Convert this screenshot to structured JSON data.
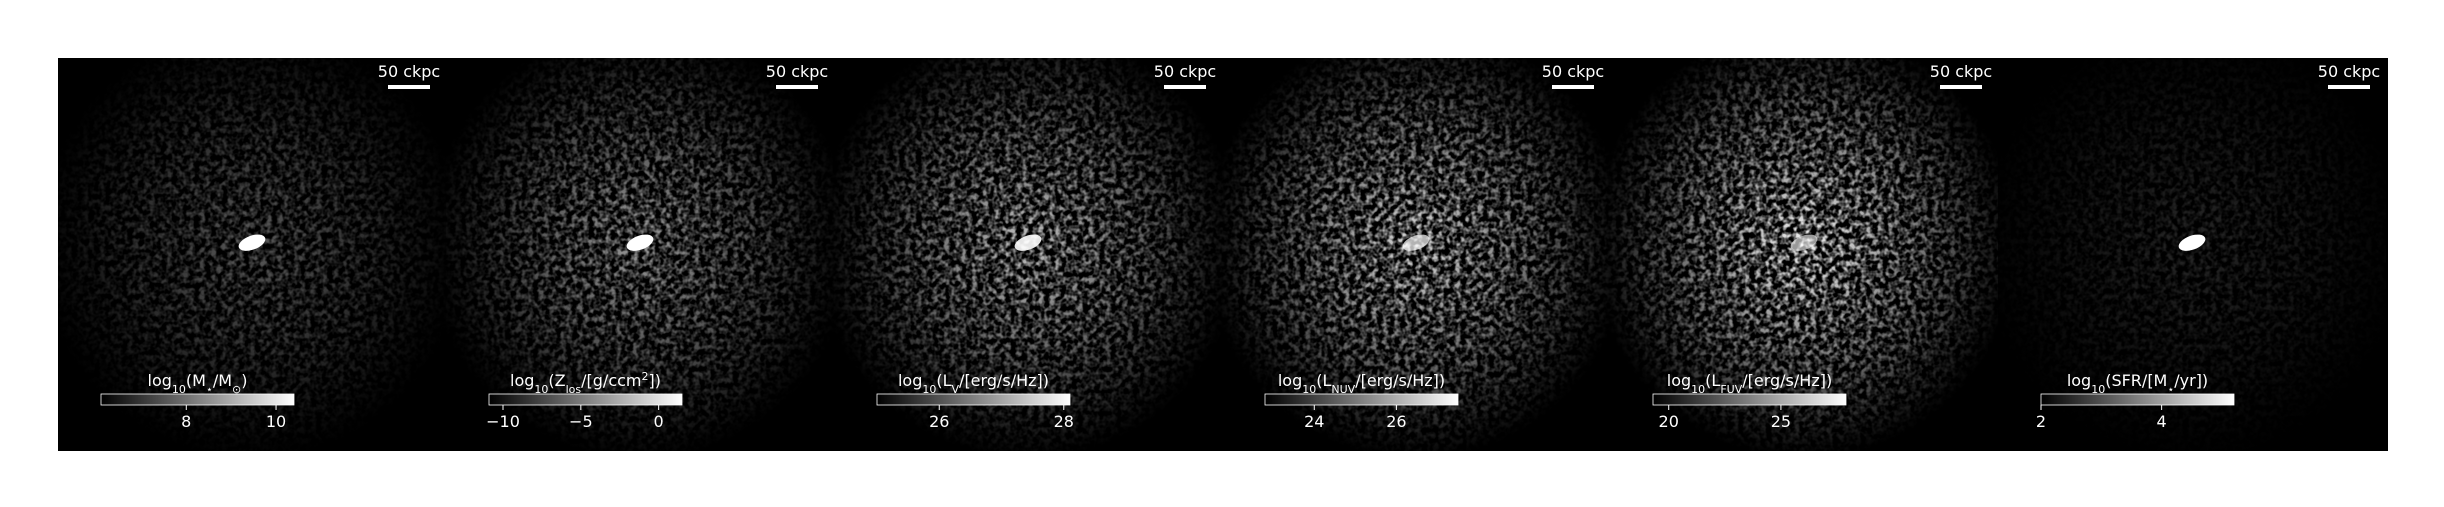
{
  "panels": [
    {
      "scale_bar": "50 ckpc",
      "colorbar": {
        "label": [
          {
            "text": "log"
          },
          {
            "text": "10",
            "sub": true
          },
          {
            "text": "(M"
          },
          {
            "text": "⋆",
            "sub": true
          },
          {
            "text": "/M"
          },
          {
            "text": "⊙",
            "sub": true
          },
          {
            "text": ")"
          }
        ],
        "lim": [
          6.1,
          10.4
        ],
        "ticks": [
          8,
          10
        ]
      }
    },
    {
      "scale_bar": "50 ckpc",
      "colorbar": {
        "label": [
          {
            "text": "log"
          },
          {
            "text": "10",
            "sub": true
          },
          {
            "text": "(Z"
          },
          {
            "text": "los",
            "sub": true
          },
          {
            "text": "/[g/ccm"
          },
          {
            "text": "2",
            "sup": true
          },
          {
            "text": "])"
          }
        ],
        "lim": [
          -10.9,
          1.5
        ],
        "ticks": [
          {
            "value": -10,
            "label": "−10"
          },
          {
            "value": -5,
            "label": "−5"
          },
          0
        ]
      }
    },
    {
      "scale_bar": "50 ckpc",
      "colorbar": {
        "label": [
          {
            "text": "log"
          },
          {
            "text": "10",
            "sub": true
          },
          {
            "text": "(L"
          },
          {
            "text": "V",
            "sub": true
          },
          {
            "text": "/[erg/s/Hz])"
          }
        ],
        "lim": [
          25.0,
          28.1
        ],
        "ticks": [
          26,
          28
        ]
      }
    },
    {
      "scale_bar": "50 ckpc",
      "colorbar": {
        "label": [
          {
            "text": "log"
          },
          {
            "text": "10",
            "sub": true
          },
          {
            "text": "(L"
          },
          {
            "text": "NUV",
            "sub": true
          },
          {
            "text": "/[erg/s/Hz])"
          }
        ],
        "lim": [
          22.8,
          27.5
        ],
        "ticks": [
          24,
          26
        ]
      }
    },
    {
      "scale_bar": "50 ckpc",
      "colorbar": {
        "label": [
          {
            "text": "log"
          },
          {
            "text": "10",
            "sub": true
          },
          {
            "text": "(L"
          },
          {
            "text": "FUV",
            "sub": true
          },
          {
            "text": "/[erg/s/Hz])"
          }
        ],
        "lim": [
          19.3,
          27.9
        ],
        "ticks": [
          20,
          25
        ]
      }
    },
    {
      "scale_bar": "50 ckpc",
      "colorbar": {
        "label": [
          {
            "text": "log"
          },
          {
            "text": "10",
            "sub": true
          },
          {
            "text": "(SFR/[M"
          },
          {
            "text": "⋆",
            "sub": true
          },
          {
            "text": "/yr])"
          }
        ],
        "lim": [
          2,
          5.2
        ],
        "ticks": [
          2,
          4
        ]
      }
    }
  ]
}
